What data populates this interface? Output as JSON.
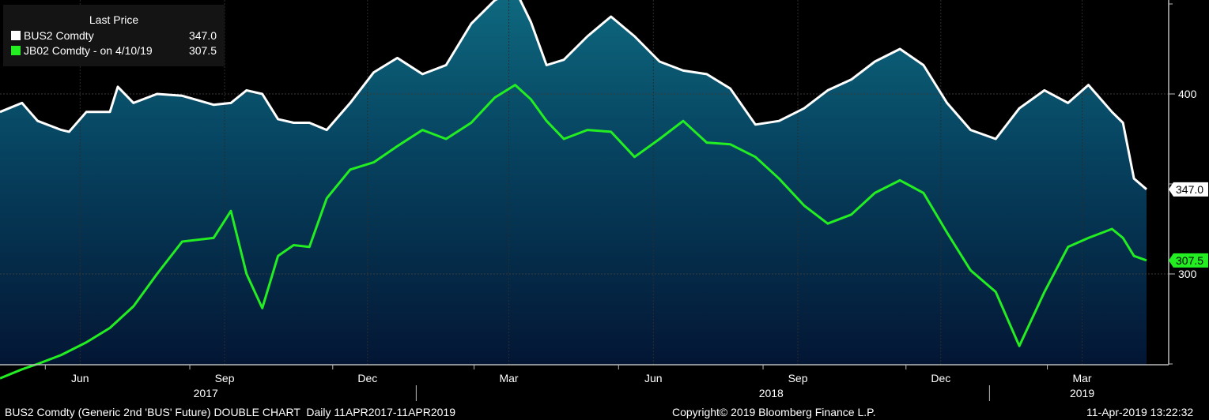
{
  "legend": {
    "title": "Last Price",
    "series": [
      {
        "name": "BUS2 Comdty",
        "value": "347.0",
        "color": "#ffffff"
      },
      {
        "name": "JB02 Comdty -   on 4/10/19",
        "value": "307.5",
        "color": "#22ee22"
      }
    ]
  },
  "footer": {
    "left": "BUS2 Comdty (Generic 2nd 'BUS' Future) DOUBLE CHART  Daily 11APR2017-11APR2019",
    "center": "Copyright© 2019 Bloomberg Finance L.P.",
    "right": "11-Apr-2019 13:22:32"
  },
  "chart_data": {
    "type": "area",
    "x_range": [
      "2017-04-11",
      "2019-04-11"
    ],
    "y_range_right_axis": [
      250,
      450
    ],
    "yticks": [
      300,
      400
    ],
    "month_labels": [
      "Jun",
      "Sep",
      "Dec",
      "Mar",
      "Jun",
      "Sep",
      "Dec",
      "Mar"
    ],
    "year_labels": [
      "2017",
      "2018",
      "2019"
    ],
    "last_value_tags": [
      "347.0",
      "307.5"
    ],
    "series": [
      {
        "name": "BUS2 Comdty",
        "color": "#ffffff",
        "x": [
          "2017-04-11",
          "2017-04-25",
          "2017-04-30",
          "2017-05-05",
          "2017-05-20",
          "2017-05-25",
          "2017-06-05",
          "2017-06-20",
          "2017-06-25",
          "2017-07-05",
          "2017-07-20",
          "2017-08-05",
          "2017-08-25",
          "2017-09-05",
          "2017-09-15",
          "2017-09-25",
          "2017-10-05",
          "2017-10-15",
          "2017-10-25",
          "2017-11-05",
          "2017-11-20",
          "2017-12-05",
          "2017-12-20",
          "2018-01-05",
          "2018-01-20",
          "2018-02-05",
          "2018-02-20",
          "2018-03-05",
          "2018-03-15",
          "2018-03-25",
          "2018-04-05",
          "2018-04-20",
          "2018-05-05",
          "2018-05-20",
          "2018-06-05",
          "2018-06-20",
          "2018-07-05",
          "2018-07-20",
          "2018-08-05",
          "2018-08-20",
          "2018-09-05",
          "2018-09-20",
          "2018-10-05",
          "2018-10-20",
          "2018-11-05",
          "2018-11-20",
          "2018-12-05",
          "2018-12-20",
          "2019-01-05",
          "2019-01-20",
          "2019-02-05",
          "2019-02-20",
          "2019-03-05",
          "2019-03-20",
          "2019-03-27",
          "2019-04-03",
          "2019-04-11"
        ],
        "y": [
          390,
          395,
          390,
          385,
          380,
          379,
          390,
          390,
          404,
          395,
          400,
          399,
          394,
          395,
          402,
          400,
          386,
          384,
          384,
          380,
          395,
          412,
          420,
          411,
          416,
          439,
          452,
          458,
          440,
          416,
          419,
          432,
          443,
          432,
          418,
          413,
          411,
          403,
          383,
          385,
          392,
          402,
          408,
          418,
          425,
          416,
          395,
          380,
          375,
          392,
          402,
          395,
          405,
          390,
          384,
          353,
          347
        ]
      },
      {
        "name": "JB02 Comdty -   on 4/10/19",
        "color": "#22ee22",
        "x": [
          "2017-04-11",
          "2017-04-25",
          "2017-05-05",
          "2017-05-20",
          "2017-06-05",
          "2017-06-20",
          "2017-07-05",
          "2017-07-20",
          "2017-08-05",
          "2017-08-25",
          "2017-09-05",
          "2017-09-15",
          "2017-09-25",
          "2017-10-05",
          "2017-10-15",
          "2017-10-25",
          "2017-11-05",
          "2017-11-20",
          "2017-12-05",
          "2017-12-20",
          "2018-01-05",
          "2018-01-20",
          "2018-02-05",
          "2018-02-20",
          "2018-03-05",
          "2018-03-15",
          "2018-03-25",
          "2018-04-05",
          "2018-04-20",
          "2018-05-05",
          "2018-05-20",
          "2018-06-05",
          "2018-06-20",
          "2018-07-05",
          "2018-07-20",
          "2018-08-05",
          "2018-08-20",
          "2018-09-05",
          "2018-09-20",
          "2018-10-05",
          "2018-10-20",
          "2018-11-05",
          "2018-11-20",
          "2018-12-05",
          "2018-12-20",
          "2019-01-05",
          "2019-01-20",
          "2019-02-05",
          "2019-02-20",
          "2019-03-05",
          "2019-03-20",
          "2019-03-27",
          "2019-04-03",
          "2019-04-11"
        ],
        "y": [
          242,
          247,
          250,
          255,
          262,
          270,
          282,
          300,
          318,
          320,
          335,
          300,
          281,
          310,
          316,
          315,
          342,
          358,
          362,
          371,
          380,
          375,
          384,
          398,
          405,
          397,
          385,
          375,
          380,
          379,
          365,
          375,
          385,
          373,
          372,
          365,
          353,
          338,
          328,
          333,
          345,
          352,
          345,
          323,
          302,
          290,
          260,
          290,
          315,
          320,
          325,
          320,
          310,
          307.5
        ]
      }
    ]
  }
}
